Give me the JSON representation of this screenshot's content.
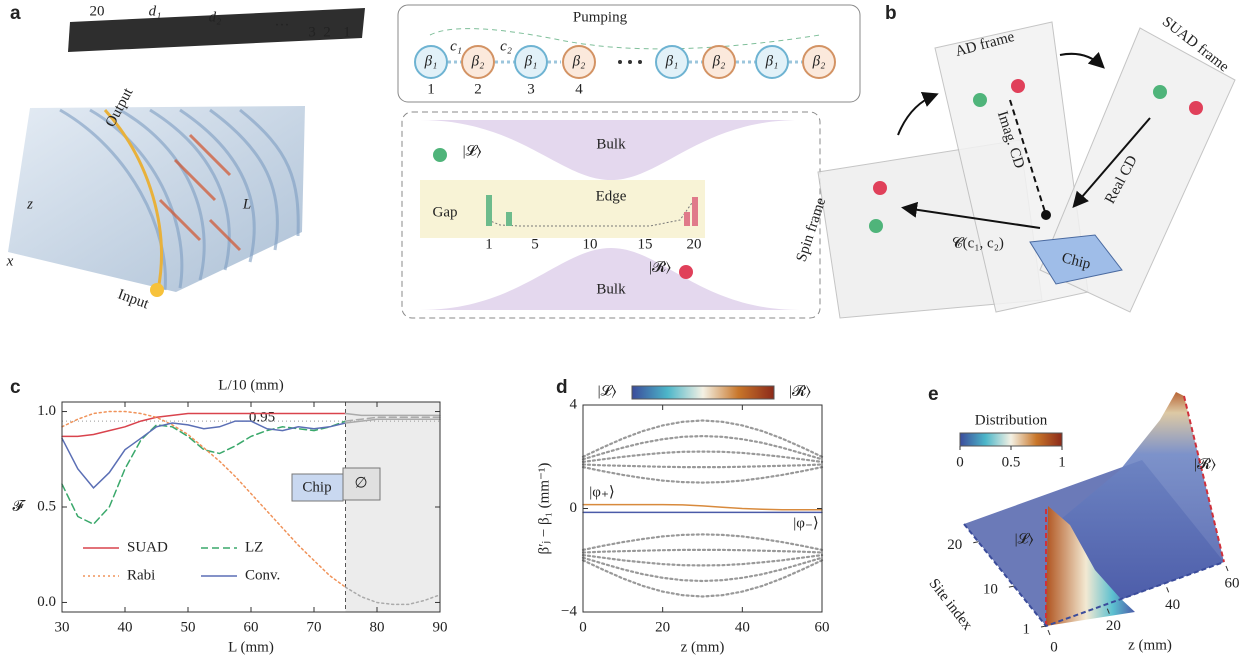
{
  "panel_labels": [
    "a",
    "b",
    "c",
    "d",
    "e"
  ],
  "panel_a": {
    "chip_labels": [
      "20",
      "3",
      "2",
      "1"
    ],
    "d1": "d₁",
    "d2": "d₂",
    "ellipsis": "···",
    "pumping": "Pumping",
    "couplings": [
      "c₁",
      "c₂"
    ],
    "sites": [
      "β₁",
      "β₂",
      "β₁",
      "β₂",
      "β₁",
      "β₂",
      "β₁",
      "β₂"
    ],
    "site_numbers": [
      "1",
      "2",
      "3",
      "4"
    ],
    "bulk_top": "Bulk",
    "bulk_bottom": "Bulk",
    "edge": "Edge",
    "gap": "Gap",
    "left_state": "|𝓛⟩",
    "right_state": "|𝓡⟩",
    "edge_ticks": [
      "1",
      "5",
      "10",
      "15",
      "20"
    ],
    "output": "Output",
    "input": "Input",
    "axis_z": "z",
    "axis_x": "x",
    "length": "L"
  },
  "panel_b": {
    "ad_frame": "AD frame",
    "suad_frame": "SUAD frame",
    "spin_frame": "Spin frame",
    "imag_cd": "Imag. CD",
    "real_cd": "Real CD",
    "mapping": "𝓒(c₁, c₂)",
    "chip": "Chip"
  },
  "chart_data": [
    {
      "type": "line",
      "title": "L/10 (mm)",
      "x_label": "L (mm)",
      "y_label": "𝓕",
      "x": [
        30,
        32.5,
        35,
        37.5,
        40,
        42.5,
        45,
        47.5,
        50,
        52.5,
        55,
        57.5,
        60,
        62.5,
        65,
        67.5,
        70,
        72.5,
        75,
        77.5,
        80,
        82.5,
        85,
        87.5,
        90
      ],
      "series": [
        {
          "name": "SUAD",
          "color": "#d9434d",
          "dash": "solid",
          "values": [
            0.87,
            0.87,
            0.88,
            0.9,
            0.92,
            0.95,
            0.97,
            0.98,
            0.99,
            0.99,
            0.99,
            0.99,
            0.99,
            0.99,
            0.99,
            0.99,
            0.99,
            0.99,
            0.99,
            0.98,
            0.98,
            0.98,
            0.98,
            0.98,
            0.98
          ]
        },
        {
          "name": "LZ",
          "color": "#3aa86b",
          "dash": "dashed",
          "values": [
            0.62,
            0.45,
            0.41,
            0.5,
            0.7,
            0.85,
            0.93,
            0.92,
            0.87,
            0.8,
            0.78,
            0.82,
            0.87,
            0.9,
            0.92,
            0.91,
            0.9,
            0.92,
            0.95,
            0.96,
            0.97,
            0.97,
            0.97,
            0.97,
            0.97
          ]
        },
        {
          "name": "Rabi",
          "color": "#f0935a",
          "dash": "dotted",
          "values": [
            0.92,
            0.96,
            0.99,
            1.0,
            1.0,
            0.99,
            0.97,
            0.93,
            0.88,
            0.81,
            0.74,
            0.66,
            0.57,
            0.48,
            0.39,
            0.3,
            0.22,
            0.14,
            0.08,
            0.03,
            0,
            -0.01,
            -0.01,
            0.01,
            0.04
          ]
        },
        {
          "name": "Conv.",
          "color": "#5b6fb5",
          "dash": "solid",
          "values": [
            0.86,
            0.7,
            0.6,
            0.68,
            0.8,
            0.86,
            0.92,
            0.94,
            0.93,
            0.91,
            0.92,
            0.95,
            0.95,
            0.91,
            0.9,
            0.92,
            0.91,
            0.92,
            0.94,
            0.95,
            0.96,
            0.96,
            0.96,
            0.96,
            0.96
          ]
        }
      ],
      "xlim": [
        30,
        90
      ],
      "xticks": [
        30,
        40,
        50,
        60,
        70,
        80,
        90
      ],
      "ylim": [
        -0.05,
        1.05
      ],
      "yticks": [
        {
          "value": 0,
          "label": "0.0"
        },
        0.5,
        {
          "value": 1,
          "label": "1.0"
        }
      ],
      "reference_line": 0.95,
      "mask_xlim": [
        75,
        90
      ],
      "mask_color": "#aaaaaa",
      "legend": "lower left",
      "inset_labels": [
        "Chip",
        "∅"
      ]
    },
    {
      "type": "line",
      "x_label": "z (mm)",
      "y_label": "β′ⱼ − β₁ (mm⁻¹)",
      "colorbar_labels": [
        "|𝓛⟩",
        "|𝓡⟩"
      ],
      "colormap": [
        "#3b4c9b",
        "#4cb6c9",
        "#f4f1e4",
        "#c8762a",
        "#8c2a1a"
      ],
      "x": [
        0,
        5,
        10,
        15,
        20,
        25,
        30,
        35,
        40,
        45,
        50,
        55,
        60
      ],
      "series": [
        {
          "color": "#999999",
          "dash": "dotted",
          "values": [
            2.0,
            2.36,
            2.7,
            2.99,
            3.21,
            3.35,
            3.4,
            3.35,
            3.21,
            2.99,
            2.7,
            2.36,
            2.0
          ]
        },
        {
          "color": "#999999",
          "dash": "dotted",
          "values": [
            1.9,
            2.13,
            2.35,
            2.54,
            2.68,
            2.77,
            2.8,
            2.77,
            2.68,
            2.54,
            2.35,
            2.13,
            1.9
          ]
        },
        {
          "color": "#999999",
          "dash": "dotted",
          "values": [
            1.8,
            1.9,
            2.0,
            2.08,
            2.15,
            2.19,
            2.2,
            2.19,
            2.15,
            2.08,
            2.0,
            1.9,
            1.8
          ]
        },
        {
          "color": "#999999",
          "dash": "dotted",
          "values": [
            1.7,
            1.67,
            1.65,
            1.63,
            1.61,
            1.6,
            1.6,
            1.6,
            1.61,
            1.63,
            1.65,
            1.67,
            1.7
          ]
        },
        {
          "color": "#999999",
          "dash": "dotted",
          "values": [
            1.6,
            1.44,
            1.3,
            1.18,
            1.08,
            1.02,
            1.0,
            1.02,
            1.08,
            1.18,
            1.3,
            1.44,
            1.6
          ]
        },
        {
          "color": "#999999",
          "dash": "dotted",
          "values": [
            -2.0,
            -2.36,
            -2.7,
            -2.99,
            -3.21,
            -3.35,
            -3.4,
            -3.35,
            -3.21,
            -2.99,
            -2.7,
            -2.36,
            -2.0
          ]
        },
        {
          "color": "#999999",
          "dash": "dotted",
          "values": [
            -1.9,
            -2.13,
            -2.35,
            -2.54,
            -2.68,
            -2.77,
            -2.8,
            -2.77,
            -2.68,
            -2.54,
            -2.35,
            -2.13,
            -1.9
          ]
        },
        {
          "color": "#999999",
          "dash": "dotted",
          "values": [
            -1.8,
            -1.9,
            -2.0,
            -2.08,
            -2.15,
            -2.19,
            -2.2,
            -2.19,
            -2.15,
            -2.08,
            -2.0,
            -1.9,
            -1.8
          ]
        },
        {
          "color": "#999999",
          "dash": "dotted",
          "values": [
            -1.7,
            -1.67,
            -1.65,
            -1.63,
            -1.61,
            -1.6,
            -1.6,
            -1.6,
            -1.61,
            -1.63,
            -1.65,
            -1.67,
            -1.7
          ]
        },
        {
          "color": "#999999",
          "dash": "dotted",
          "values": [
            -1.6,
            -1.44,
            -1.3,
            -1.18,
            -1.08,
            -1.02,
            -1.0,
            -1.02,
            -1.08,
            -1.18,
            -1.3,
            -1.44,
            -1.6
          ]
        },
        {
          "color": "#d88a3c",
          "dash": "solid",
          "values": [
            0.15,
            0.15,
            0.15,
            0.15,
            0.15,
            0.14,
            0.1,
            0.05,
            0,
            -0.03,
            -0.05,
            -0.05,
            -0.05
          ]
        },
        {
          "color": "#4a5aa8",
          "dash": "solid",
          "values": [
            -0.15,
            -0.15,
            -0.15,
            -0.15,
            -0.15,
            -0.15,
            -0.15,
            -0.15,
            -0.15,
            -0.15,
            -0.15,
            -0.15,
            -0.15
          ]
        }
      ],
      "annotations": [
        "|φ₊⟩",
        "|φ₋⟩"
      ],
      "xlim": [
        0,
        60
      ],
      "xticks": [
        0,
        20,
        40,
        60
      ],
      "ylim": [
        -4,
        4
      ],
      "yticks": [
        {
          "value": -4,
          "label": "−4"
        },
        0,
        4
      ]
    },
    {
      "type": "surface",
      "colorbar_title": "Distribution",
      "colorbar_ticks": [
        0,
        0.5,
        1
      ],
      "colormap": [
        "#3b4c9b",
        "#4cb6c9",
        "#f4f1e4",
        "#c8762a",
        "#8c2a1a"
      ],
      "x_label": "z (mm)",
      "y_label": "Site index",
      "state_labels": [
        "|𝓛⟩",
        "|𝓡⟩"
      ],
      "xlim": [
        0,
        60
      ],
      "xticks": [
        0,
        20,
        40,
        60
      ],
      "ylim": [
        1,
        24
      ],
      "yticks": [
        1,
        10,
        20
      ]
    }
  ]
}
